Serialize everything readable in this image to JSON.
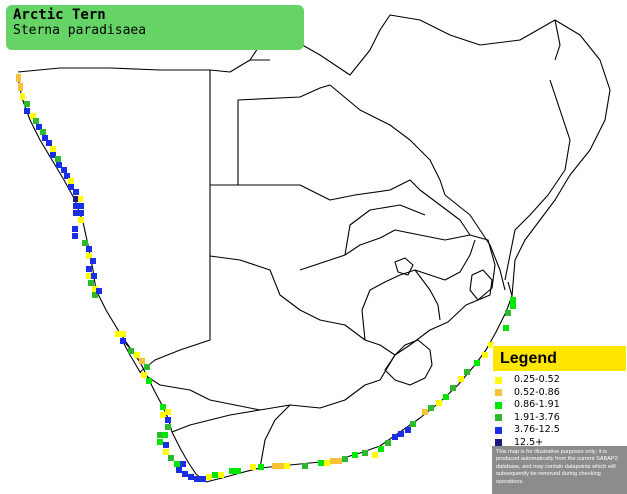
{
  "species": {
    "common_name": "Arctic Tern",
    "scientific_name": "Sterna paradisaea"
  },
  "legend": {
    "title": "Legend",
    "items": [
      {
        "label": "0.25-0.52",
        "color": "#ffff00"
      },
      {
        "label": "0.52-0.86",
        "color": "#f7c23a"
      },
      {
        "label": "0.86-1.91",
        "color": "#00e600"
      },
      {
        "label": "1.91-3.76",
        "color": "#2db82d"
      },
      {
        "label": "3.76-12.5",
        "color": "#1a2ee6"
      },
      {
        "label": "12.5+",
        "color": "#1a1a80"
      }
    ],
    "disclaimer": "This map is for illustrative purposes only; it is produced automatically from the current SABAP2 database, and may contain datapoints which will subsequently be removed during checking operations."
  },
  "colors": {
    "title_background": "#66d366",
    "legend_header": "#ffe600",
    "border_lines": "#000000"
  }
}
